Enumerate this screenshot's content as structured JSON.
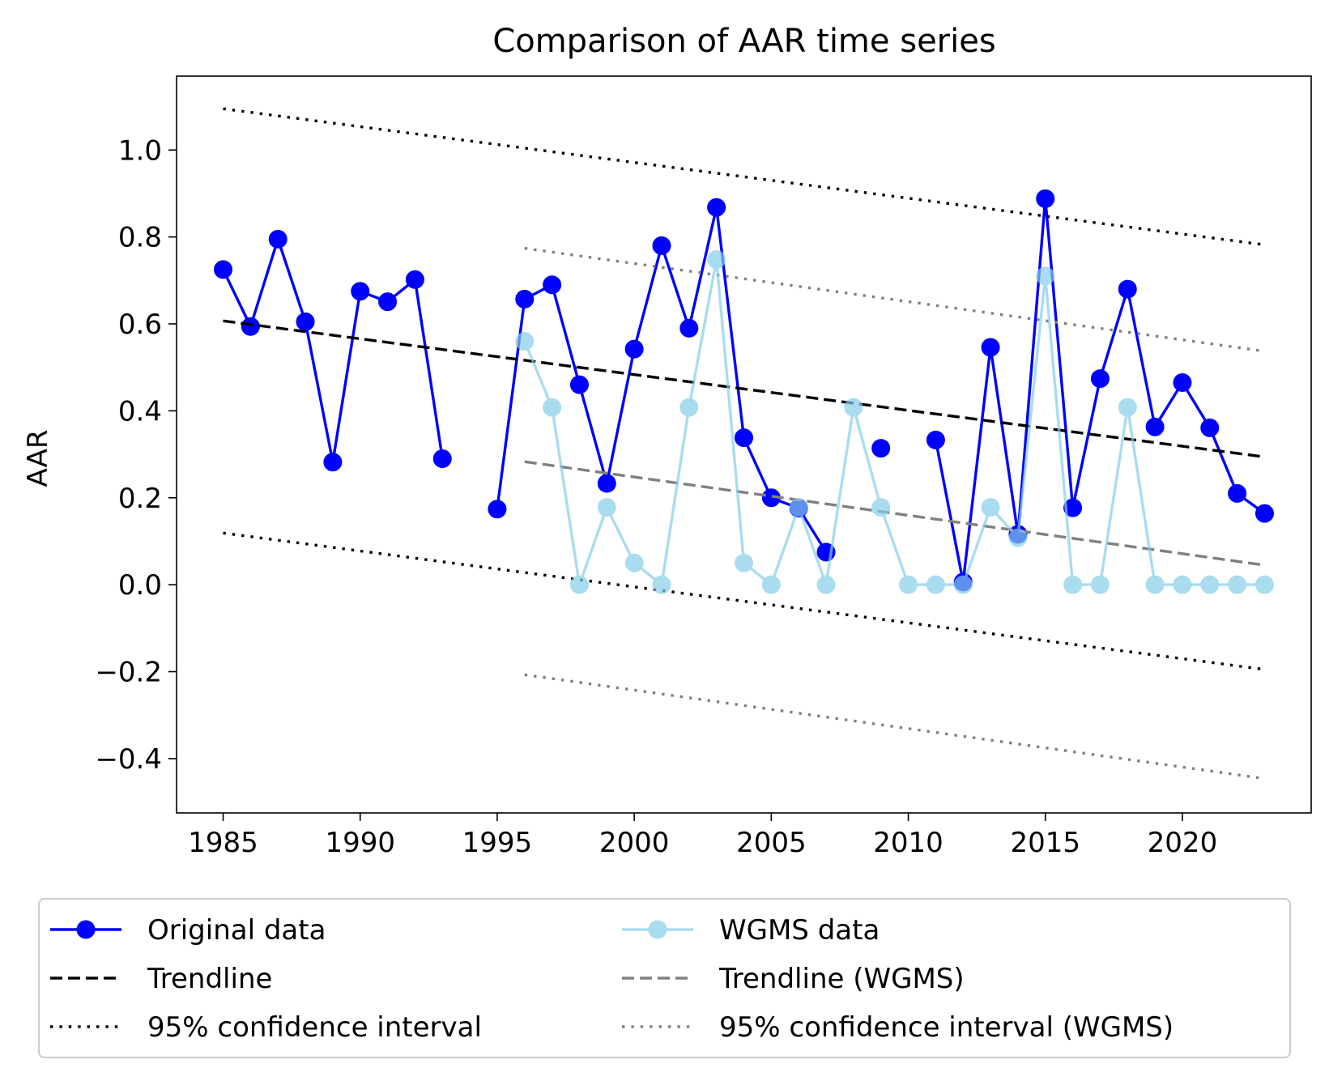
{
  "chart_data": {
    "type": "line",
    "title": "Comparison of AAR time series",
    "xlabel": "",
    "ylabel": "AAR",
    "xlim": [
      1983.3,
      2024.7
    ],
    "ylim": [
      -0.525,
      1.17
    ],
    "xticks": [
      1985,
      1990,
      1995,
      2000,
      2005,
      2010,
      2015,
      2020
    ],
    "xtick_labels": [
      "1985",
      "1990",
      "1995",
      "2000",
      "2005",
      "2010",
      "2015",
      "2020"
    ],
    "yticks": [
      -0.4,
      -0.2,
      0.0,
      0.2,
      0.4,
      0.6,
      0.8,
      1.0
    ],
    "ytick_labels": [
      "−0.4",
      "−0.2",
      "0.0",
      "0.2",
      "0.4",
      "0.6",
      "0.8",
      "1.0"
    ],
    "grid": false,
    "legend_placement": "below plot, two columns",
    "series": [
      {
        "name": "Original data",
        "kind": "line-marker",
        "color": "#0000ff",
        "x": [
          1985,
          1986,
          1987,
          1988,
          1989,
          1990,
          1991,
          1992,
          1993,
          1994,
          1995,
          1996,
          1997,
          1998,
          1999,
          2000,
          2001,
          2002,
          2003,
          2004,
          2005,
          2006,
          2007,
          2008,
          2009,
          2010,
          2011,
          2012,
          2013,
          2014,
          2015,
          2016,
          2017,
          2018,
          2019,
          2020,
          2021,
          2022,
          2023
        ],
        "y": [
          0.725,
          0.594,
          0.795,
          0.605,
          0.282,
          0.675,
          0.651,
          0.702,
          0.29,
          null,
          0.174,
          0.657,
          0.69,
          0.46,
          0.233,
          0.542,
          0.78,
          0.59,
          0.868,
          0.338,
          0.2,
          0.176,
          0.075,
          null,
          0.314,
          null,
          0.333,
          0.006,
          0.546,
          0.116,
          0.888,
          0.177,
          0.474,
          0.68,
          0.363,
          0.465,
          0.361,
          0.21,
          0.164
        ]
      },
      {
        "name": "WGMS data",
        "kind": "line-marker",
        "color": "#87ceeb",
        "x": [
          1996,
          1997,
          1998,
          1999,
          2000,
          2001,
          2002,
          2003,
          2004,
          2005,
          2006,
          2007,
          2008,
          2009,
          2010,
          2011,
          2012,
          2013,
          2014,
          2015,
          2016,
          2017,
          2018,
          2019,
          2020,
          2021,
          2022,
          2023
        ],
        "y": [
          0.56,
          0.408,
          0.0,
          0.178,
          0.05,
          0.0,
          0.408,
          0.748,
          0.05,
          0.0,
          0.178,
          0.0,
          0.408,
          0.178,
          0.0,
          0.0,
          0.0,
          0.178,
          0.108,
          0.71,
          0.0,
          0.0,
          0.408,
          0.0,
          0.0,
          0.0,
          0.0,
          0.0
        ]
      },
      {
        "name": "Trendline",
        "kind": "dashed",
        "color": "#000000",
        "x": [
          1985,
          2023
        ],
        "y": [
          0.607,
          0.294
        ]
      },
      {
        "name": "Trendline (WGMS)",
        "kind": "dashed",
        "color": "#808080",
        "x": [
          1996,
          2023
        ],
        "y": [
          0.283,
          0.045
        ]
      },
      {
        "name": "95% confidence interval",
        "kind": "dotted",
        "color": "#000000",
        "x": [
          1985,
          2023
        ],
        "y": [
          1.095,
          0.782
        ]
      },
      {
        "name": "",
        "kind": "dotted",
        "color": "#000000",
        "x": [
          1985,
          2023
        ],
        "y": [
          0.119,
          -0.195
        ]
      },
      {
        "name": "95% confidence interval (WGMS)",
        "kind": "dotted",
        "color": "#808080",
        "x": [
          1996,
          2023
        ],
        "y": [
          0.774,
          0.537
        ]
      },
      {
        "name": "",
        "kind": "dotted",
        "color": "#808080",
        "x": [
          1996,
          2023
        ],
        "y": [
          -0.207,
          -0.446
        ]
      }
    ],
    "legend": [
      {
        "label": "Original data",
        "kind": "line-marker",
        "color": "#0000ff"
      },
      {
        "label": "WGMS data",
        "kind": "line-marker",
        "color": "#87ceeb"
      },
      {
        "label": "Trendline",
        "kind": "dashed",
        "color": "#000000"
      },
      {
        "label": "Trendline (WGMS)",
        "kind": "dashed",
        "color": "#808080"
      },
      {
        "label": "95% confidence interval",
        "kind": "dotted",
        "color": "#000000"
      },
      {
        "label": "95% confidence interval (WGMS)",
        "kind": "dotted",
        "color": "#808080"
      }
    ]
  }
}
